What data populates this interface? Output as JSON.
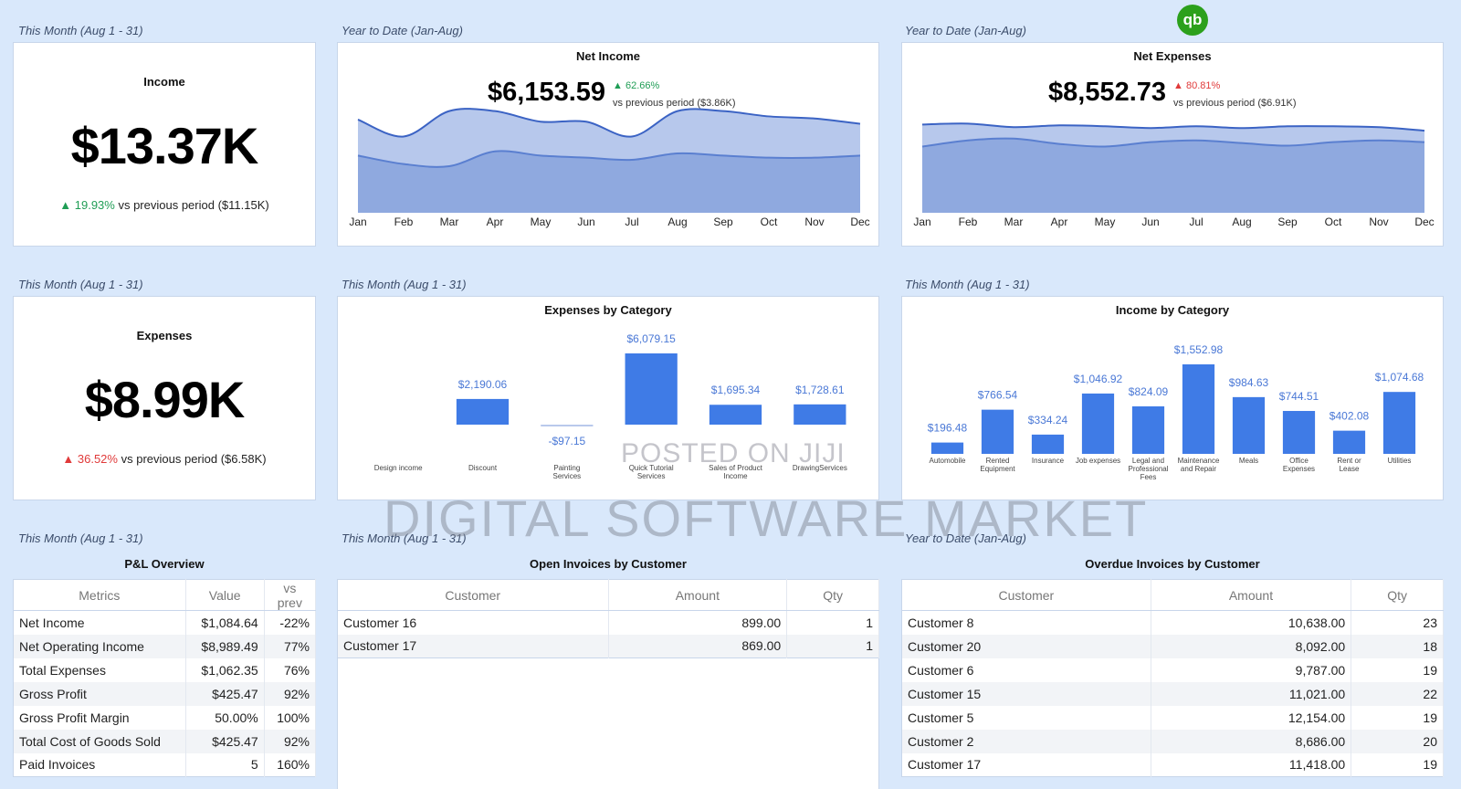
{
  "logo": {
    "text": "qb",
    "icon": "quickbooks-logo-icon"
  },
  "watermarks": [
    "POSTED ON JIJI",
    "DIGITAL SOFTWARE MARKET"
  ],
  "cards": {
    "income": {
      "period": "This Month (Aug 1 - 31)",
      "title": "Income",
      "value": "$13.37K",
      "change": "▲ 19.93%",
      "change_color": "#1f9d55",
      "vs": "vs previous period ($11.15K)"
    },
    "expenses": {
      "period": "This Month (Aug 1 - 31)",
      "title": "Expenses",
      "value": "$8.99K",
      "change": "▲ 36.52%",
      "change_color": "#e03a3a",
      "vs": "vs previous period ($6.58K)"
    },
    "net_income": {
      "period": "Year to Date (Jan-Aug)",
      "title": "Net Income",
      "value": "$6,153.59",
      "change": "▲ 62.66%",
      "vs": "vs previous period ($3.86K)"
    },
    "net_expenses": {
      "period": "Year to Date (Jan-Aug)",
      "title": "Net Expenses",
      "value": "$8,552.73",
      "change": "▲ 80.81%",
      "vs": "vs previous period ($6.91K)"
    },
    "expenses_by_category": {
      "period": "This Month (Aug 1 - 31)"
    },
    "income_by_category": {
      "period": "This Month (Aug 1 - 31)"
    }
  },
  "chart_data": [
    {
      "type": "area",
      "title": "Net Income",
      "x": [
        "Jan",
        "Feb",
        "Mar",
        "Apr",
        "May",
        "Jun",
        "Jul",
        "Aug",
        "Sep",
        "Oct",
        "Nov",
        "Dec"
      ],
      "series": [
        {
          "values": [
            88,
            72,
            96,
            96,
            86,
            86,
            72,
            96,
            96,
            91,
            89,
            84
          ]
        },
        {
          "values": [
            54,
            46,
            44,
            58,
            54,
            52,
            50,
            56,
            54,
            52,
            52,
            54
          ]
        }
      ],
      "ylim": [
        0,
        100
      ],
      "grid": false,
      "colors": [
        "#9fb5e6",
        "#6f8fd6"
      ]
    },
    {
      "type": "area",
      "title": "Net Expenses",
      "x": [
        "Jan",
        "Feb",
        "Mar",
        "Apr",
        "May",
        "Jun",
        "Jul",
        "Aug",
        "Sep",
        "Oct",
        "Nov",
        "Dec"
      ],
      "series": [
        {
          "values": [
            100,
            101,
            97,
            99,
            98,
            96,
            98,
            96,
            98,
            98,
            97,
            93
          ]
        },
        {
          "values": [
            75,
            82,
            84,
            78,
            75,
            80,
            82,
            79,
            76,
            80,
            82,
            80
          ]
        }
      ],
      "ylim": [
        0,
        120
      ],
      "grid": false,
      "colors": [
        "#9fb5e6",
        "#6f8fd6"
      ]
    },
    {
      "type": "bar",
      "title": "Expenses by Category",
      "categories": [
        "Design income",
        "Discount",
        "Painting Services",
        "Quick Tutorial Services",
        "Sales of Product Income",
        "DrawingServices"
      ],
      "values": [
        0,
        2190.06,
        -97.15,
        6079.15,
        1695.34,
        1728.61
      ],
      "labels": [
        "",
        "$2,190.06",
        "-$97.15",
        "$6,079.15",
        "$1,695.34",
        "$1,728.61"
      ],
      "color": "#3f7be6"
    },
    {
      "type": "bar",
      "title": "Income by Category",
      "categories": [
        "Automobile",
        "Rented Equipment",
        "Insurance",
        "Job expenses",
        "Legal and Professional Fees",
        "Maintenance and Repair",
        "Meals",
        "Office Expenses",
        "Rent or Lease",
        "Utilities"
      ],
      "values": [
        196.48,
        766.54,
        334.24,
        1046.92,
        824.09,
        1552.98,
        984.63,
        744.51,
        402.08,
        1074.68
      ],
      "labels": [
        "$196.48",
        "$766.54",
        "$334.24",
        "$1,046.92",
        "$824.09",
        "$1,552.98",
        "$984.63",
        "$744.51",
        "$402.08",
        "$1,074.68"
      ],
      "color": "#3f7be6"
    }
  ],
  "tables": {
    "pl": {
      "period": "This Month (Aug 1 - 31)",
      "title": "P&L Overview",
      "headers": [
        "Metrics",
        "Value",
        "vs prev"
      ],
      "rows": [
        [
          "Net Income",
          "$1,084.64",
          "-22%"
        ],
        [
          "Net Operating Income",
          "$8,989.49",
          "77%"
        ],
        [
          "Total Expenses",
          "$1,062.35",
          "76%"
        ],
        [
          "Gross Profit",
          "$425.47",
          "92%"
        ],
        [
          "Gross Profit Margin",
          "50.00%",
          "100%"
        ],
        [
          "Total Cost of Goods Sold",
          "$425.47",
          "92%"
        ],
        [
          "Paid Invoices",
          "5",
          "160%"
        ]
      ]
    },
    "open": {
      "period": "This Month (Aug 1 - 31)",
      "title": "Open Invoices by Customer",
      "headers": [
        "Customer",
        "Amount",
        "Qty"
      ],
      "rows": [
        [
          "Customer 16",
          "899.00",
          "1"
        ],
        [
          "Customer 17",
          "869.00",
          "1"
        ]
      ]
    },
    "overdue": {
      "period": "Year to Date (Jan-Aug)",
      "title": "Overdue Invoices by Customer",
      "headers": [
        "Customer",
        "Amount",
        "Qty"
      ],
      "rows": [
        [
          "Customer 8",
          "10,638.00",
          "23"
        ],
        [
          "Customer 20",
          "8,092.00",
          "18"
        ],
        [
          "Customer 6",
          "9,787.00",
          "19"
        ],
        [
          "Customer 15",
          "11,021.00",
          "22"
        ],
        [
          "Customer 5",
          "12,154.00",
          "19"
        ],
        [
          "Customer 2",
          "8,686.00",
          "20"
        ],
        [
          "Customer 17",
          "11,418.00",
          "19"
        ]
      ]
    }
  }
}
